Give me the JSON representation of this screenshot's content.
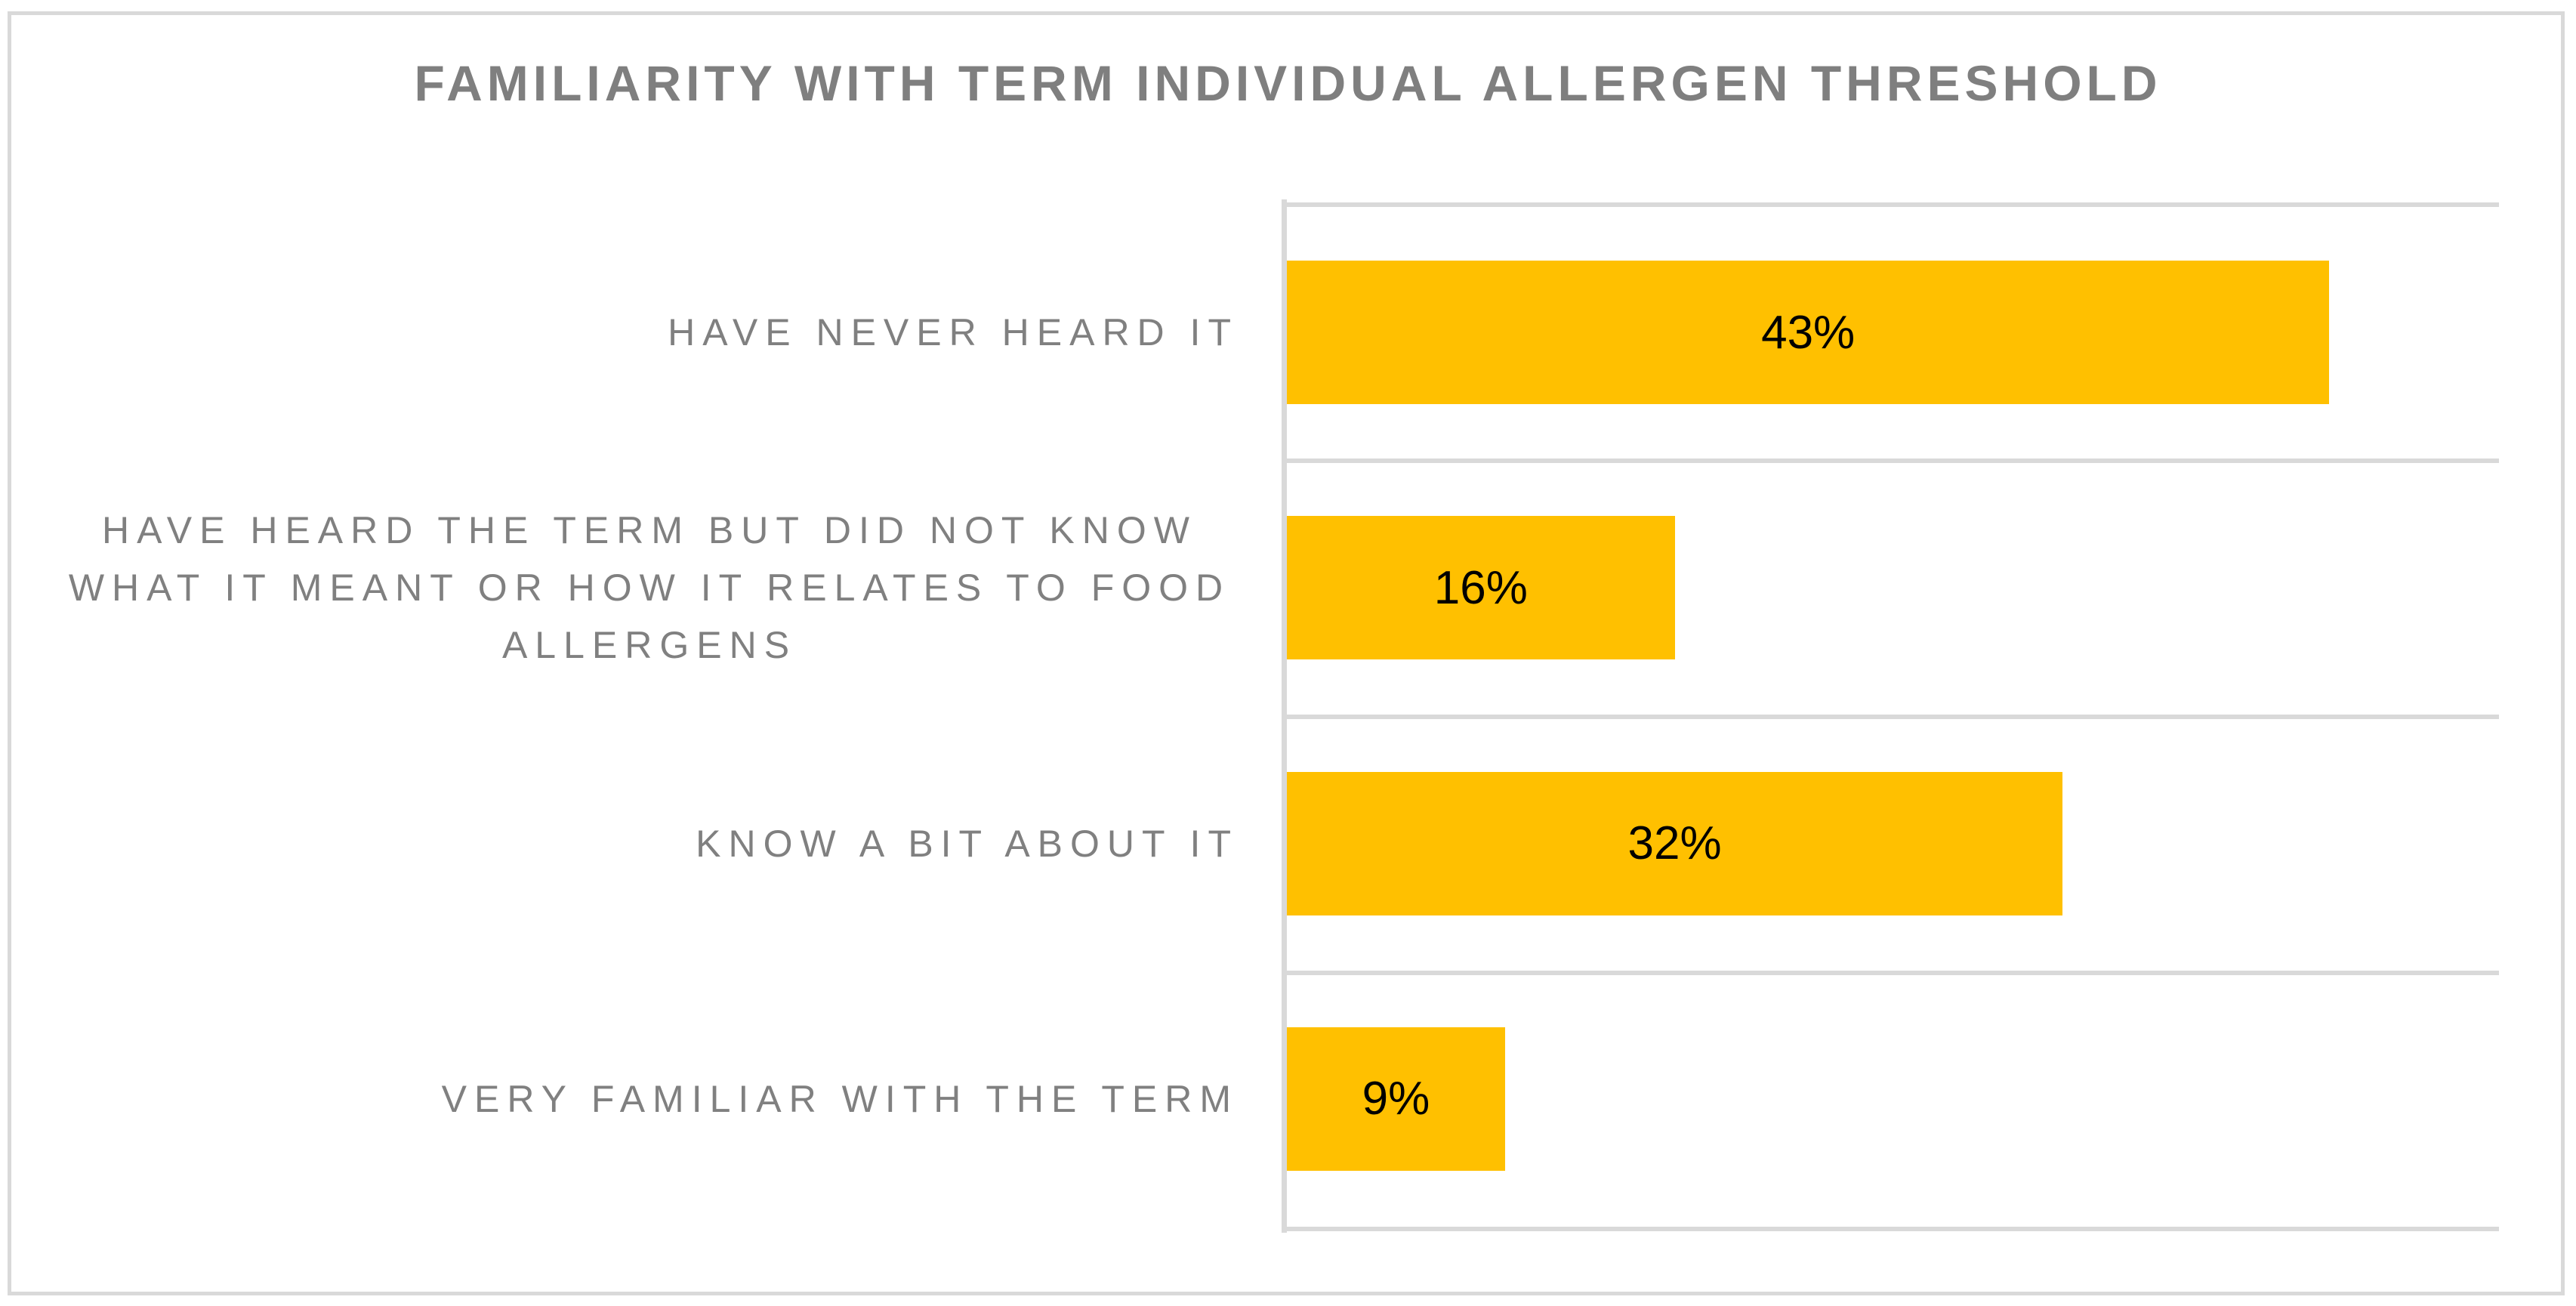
{
  "chart_data": {
    "type": "bar",
    "orientation": "horizontal",
    "title": "FAMILIARITY WITH TERM INDIVIDUAL ALLERGEN THRESHOLD",
    "categories": [
      "HAVE NEVER HEARD IT",
      "HAVE HEARD THE TERM BUT DID NOT KNOW WHAT IT MEANT OR HOW IT RELATES TO FOOD ALLERGENS",
      "KNOW A BIT ABOUT IT",
      "VERY FAMILIAR WITH THE TERM"
    ],
    "values": [
      43,
      16,
      32,
      9
    ],
    "value_labels": [
      "43%",
      "16%",
      "32%",
      "9%"
    ],
    "xlabel": "",
    "ylabel": "",
    "xlim": [
      0,
      50
    ],
    "gridlines": "category-boundaries-horizontal",
    "legend": "none",
    "data_label_position": "center",
    "colors": {
      "bar": "#FFC000",
      "gridline": "#D9D9D9",
      "axis_line": "#D9D9D9",
      "category_text": "#808080",
      "title_text": "#7F7F7F",
      "data_label_text": "#000000",
      "background": "#FFFFFF",
      "outer_border": "#D9D9D9"
    }
  }
}
